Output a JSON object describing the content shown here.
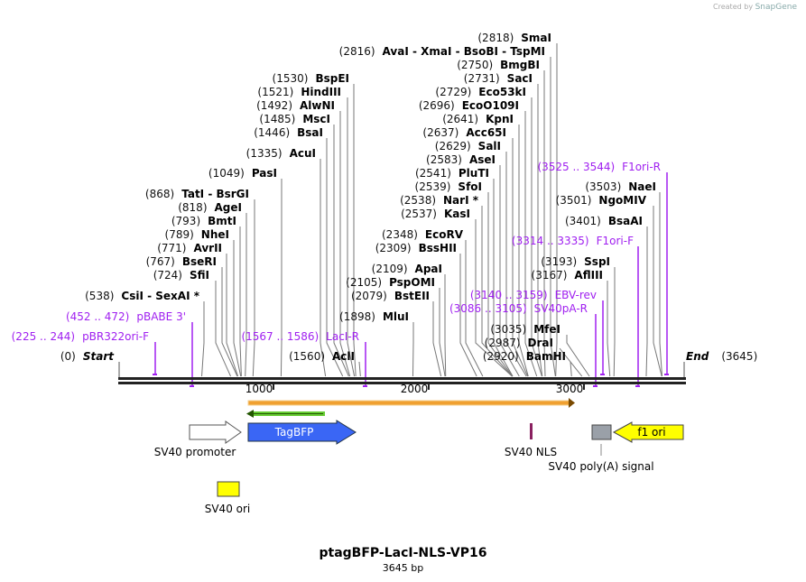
{
  "credit": {
    "prefix": "Created by",
    "brand": "SnapGene"
  },
  "title": "ptagBFP-LacI-NLS-VP16",
  "length_label": "3645 bp",
  "ticks": [
    "1000",
    "2000",
    "3000"
  ],
  "ends": {
    "start": {
      "pos": "(0)",
      "name": "Start"
    },
    "end": {
      "pos": "(3645)",
      "name": "End"
    }
  },
  "enzymes": [
    {
      "pos": "(2818)",
      "name": "SmaI"
    },
    {
      "pos": "(2816)",
      "name": "AvaI  - XmaI  - BsoBI  - TspMI"
    },
    {
      "pos": "(2750)",
      "name": "BmgBI"
    },
    {
      "pos": "(2731)",
      "name": "SacI"
    },
    {
      "pos": "(2729)",
      "name": "Eco53kI"
    },
    {
      "pos": "(2696)",
      "name": "EcoO109I"
    },
    {
      "pos": "(2641)",
      "name": "KpnI"
    },
    {
      "pos": "(2637)",
      "name": "Acc65I"
    },
    {
      "pos": "(2629)",
      "name": "SalI"
    },
    {
      "pos": "(2583)",
      "name": "AseI"
    },
    {
      "pos": "(2541)",
      "name": "PluTI"
    },
    {
      "pos": "(2539)",
      "name": "SfoI"
    },
    {
      "pos": "(2538)",
      "name": "NarI *"
    },
    {
      "pos": "(2537)",
      "name": "KasI"
    },
    {
      "pos": "(2348)",
      "name": "EcoRV"
    },
    {
      "pos": "(2309)",
      "name": "BssHII"
    },
    {
      "pos": "(2109)",
      "name": "ApaI"
    },
    {
      "pos": "(2105)",
      "name": "PspOMI"
    },
    {
      "pos": "(2079)",
      "name": "BstEII"
    },
    {
      "pos": "(1898)",
      "name": "MluI"
    },
    {
      "pos": "(1560)",
      "name": "AclI"
    },
    {
      "pos": "(1530)",
      "name": "BspEI"
    },
    {
      "pos": "(1521)",
      "name": "HindIII"
    },
    {
      "pos": "(1492)",
      "name": "AlwNI"
    },
    {
      "pos": "(1485)",
      "name": "MscI"
    },
    {
      "pos": "(1446)",
      "name": "BsaI"
    },
    {
      "pos": "(1335)",
      "name": "AcuI"
    },
    {
      "pos": "(1049)",
      "name": "PasI"
    },
    {
      "pos": "(868)",
      "name": "TatI  - BsrGI"
    },
    {
      "pos": "(818)",
      "name": "AgeI"
    },
    {
      "pos": "(793)",
      "name": "BmtI"
    },
    {
      "pos": "(789)",
      "name": "NheI"
    },
    {
      "pos": "(771)",
      "name": "AvrII"
    },
    {
      "pos": "(767)",
      "name": "BseRI"
    },
    {
      "pos": "(724)",
      "name": "SfiI"
    },
    {
      "pos": "(538)",
      "name": "CsiI  - SexAI *"
    },
    {
      "pos": "(3503)",
      "name": "NaeI"
    },
    {
      "pos": "(3501)",
      "name": "NgoMIV"
    },
    {
      "pos": "(3401)",
      "name": "BsaAI"
    },
    {
      "pos": "(3193)",
      "name": "SspI"
    },
    {
      "pos": "(3167)",
      "name": "AflIII"
    },
    {
      "pos": "(3035)",
      "name": "MfeI"
    },
    {
      "pos": "(2987)",
      "name": "DraI"
    },
    {
      "pos": "(2920)",
      "name": "BamHI"
    }
  ],
  "primers": [
    {
      "pos": "(452 .. 472)",
      "name": "pBABE 3'"
    },
    {
      "pos": "(225 .. 244)",
      "name": "pBR322ori-F"
    },
    {
      "pos": "(1567 .. 1586)",
      "name": "LacI-R"
    },
    {
      "pos": "(3525 .. 3544)",
      "name": "F1ori-R"
    },
    {
      "pos": "(3314 .. 3335)",
      "name": "F1ori-F"
    },
    {
      "pos": "(3140 .. 3159)",
      "name": "EBV-rev"
    },
    {
      "pos": "(3086 .. 3105)",
      "name": "SV40pA-R"
    }
  ],
  "features": {
    "sv40_promoter": "SV40 promoter",
    "tagbfp": "TagBFP",
    "sv40_nls": "SV40 NLS",
    "polya": "SV40 poly(A) signal",
    "f1_ori": "f1 ori",
    "sv40_ori": "SV40 ori"
  },
  "colors": {
    "primer": "#a020f0",
    "tagbfp": "#3a66f5",
    "f1": "#ffff00",
    "orf": "#f0a030",
    "green": "#66cc33"
  }
}
